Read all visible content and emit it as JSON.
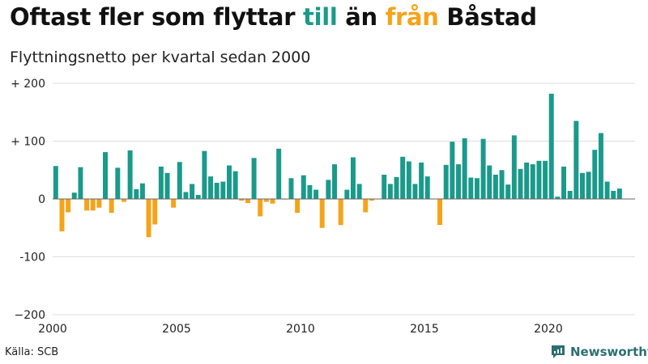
{
  "title": {
    "part1": "Oftast fler som flyttar ",
    "highlight_in": "till",
    "part2": " än ",
    "highlight_out": "från",
    "part3": " Båstad"
  },
  "subtitle": "Flyttningsnetto per kvartal sedan 2000",
  "source": "Källa: SCB",
  "brand": "Newsworthy",
  "colors": {
    "positive": "#1a9a8a",
    "negative": "#f5a31a",
    "grid": "#dddddd",
    "zero": "#666666",
    "brand": "#2a6f73"
  },
  "chart_data": {
    "type": "bar",
    "x_axis": {
      "start": 2000.0,
      "quarter_step": 0.25,
      "ticks": [
        2000,
        2005,
        2010,
        2015,
        2020
      ],
      "range": [
        2000.0,
        2023.5
      ]
    },
    "y_axis": {
      "range": [
        -200,
        200
      ],
      "ticks": [
        200,
        100,
        0,
        -100,
        -200
      ],
      "tick_labels": [
        "+ 200",
        "+ 100",
        "0",
        "-100",
        "−200"
      ]
    },
    "grid": "horizontal",
    "values": [
      57,
      -56,
      -23,
      11,
      55,
      -20,
      -20,
      -15,
      81,
      -24,
      54,
      -5,
      84,
      17,
      27,
      -66,
      -44,
      56,
      45,
      -15,
      64,
      12,
      26,
      7,
      83,
      39,
      28,
      30,
      58,
      48,
      -3,
      -7,
      71,
      -30,
      -5,
      -8,
      87,
      -1,
      36,
      -24,
      41,
      24,
      16,
      -50,
      33,
      60,
      -45,
      16,
      72,
      26,
      -23,
      -3,
      0,
      42,
      26,
      38,
      73,
      65,
      26,
      63,
      39,
      0,
      -45,
      59,
      99,
      60,
      105,
      37,
      36,
      104,
      58,
      42,
      50,
      25,
      110,
      52,
      63,
      60,
      66,
      66,
      182,
      4,
      56,
      14,
      135,
      45,
      47,
      85,
      114,
      30,
      14,
      18
    ]
  }
}
